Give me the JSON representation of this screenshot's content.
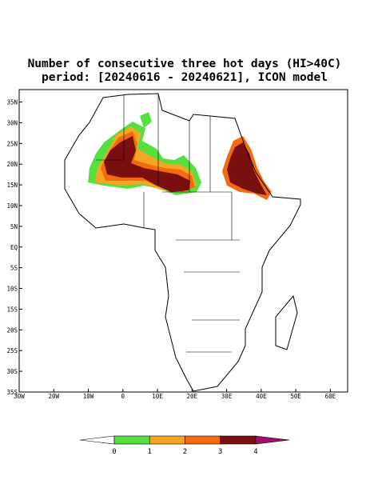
{
  "map": {
    "title": "Number of consecutive three hot days (HI>40C)",
    "subtitle": "period: [20240616 - 20240621], ICON model",
    "lonlim": [
      -30,
      65
    ],
    "latlim": [
      -35,
      38
    ],
    "lat_ticks": [
      {
        "value": 35,
        "label": "35N"
      },
      {
        "value": 30,
        "label": "30N"
      },
      {
        "value": 25,
        "label": "25N"
      },
      {
        "value": 20,
        "label": "20N"
      },
      {
        "value": 15,
        "label": "15N"
      },
      {
        "value": 10,
        "label": "10N"
      },
      {
        "value": 5,
        "label": "5N"
      },
      {
        "value": 0,
        "label": "EQ"
      },
      {
        "value": -5,
        "label": "5S"
      },
      {
        "value": -10,
        "label": "10S"
      },
      {
        "value": -15,
        "label": "15S"
      },
      {
        "value": -20,
        "label": "20S"
      },
      {
        "value": -25,
        "label": "25S"
      },
      {
        "value": -30,
        "label": "30S"
      },
      {
        "value": -35,
        "label": "35S"
      }
    ],
    "lon_ticks": [
      {
        "value": -30,
        "label": "30W"
      },
      {
        "value": -20,
        "label": "20W"
      },
      {
        "value": -10,
        "label": "10W"
      },
      {
        "value": 0,
        "label": "0"
      },
      {
        "value": 10,
        "label": "10E"
      },
      {
        "value": 20,
        "label": "20E"
      },
      {
        "value": 30,
        "label": "30E"
      },
      {
        "value": 40,
        "label": "40E"
      },
      {
        "value": 50,
        "label": "50E"
      },
      {
        "value": 60,
        "label": "60E"
      }
    ],
    "colorbar": {
      "levels": [
        0,
        1,
        2,
        3,
        4
      ],
      "colors": [
        "#ffffff",
        "#55e040",
        "#f5a623",
        "#f26b10",
        "#7a0f0f",
        "#a0106a"
      ]
    }
  }
}
